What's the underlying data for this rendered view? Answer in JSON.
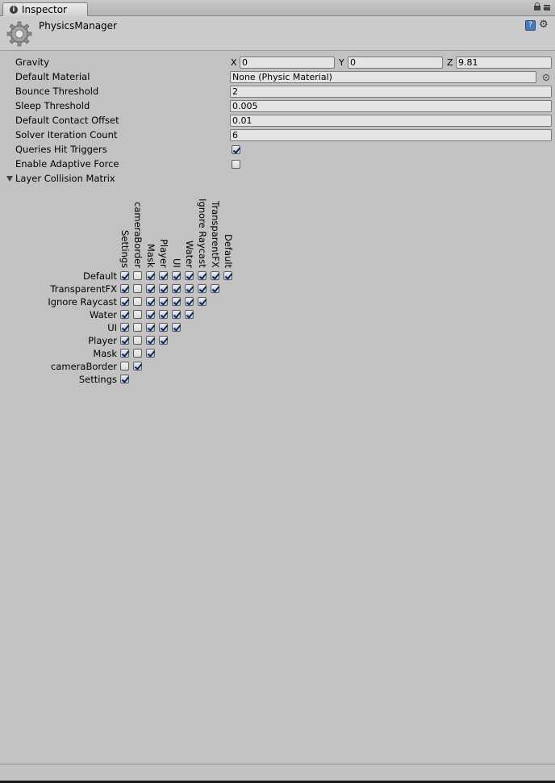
{
  "window": {
    "tab_label": "Inspector"
  },
  "header": {
    "title": "PhysicsManager"
  },
  "properties": {
    "gravity": {
      "label": "Gravity",
      "x_label": "X",
      "x": "0",
      "y_label": "Y",
      "y": "0",
      "z_label": "Z",
      "z": "9.81"
    },
    "default_material": {
      "label": "Default Material",
      "value": "None (Physic Material)"
    },
    "bounce_threshold": {
      "label": "Bounce Threshold",
      "value": "2"
    },
    "sleep_threshold": {
      "label": "Sleep Threshold",
      "value": "0.005"
    },
    "default_contact_offset": {
      "label": "Default Contact Offset",
      "value": "0.01"
    },
    "solver_iteration_count": {
      "label": "Solver Iteration Count",
      "value": "6"
    },
    "queries_hit_triggers": {
      "label": "Queries Hit Triggers",
      "checked": true
    },
    "enable_adaptive_force": {
      "label": "Enable Adaptive Force",
      "checked": false
    }
  },
  "matrix": {
    "label": "Layer Collision Matrix",
    "expanded": true,
    "rows": [
      "Default",
      "TransparentFX",
      "Ignore Raycast",
      "Water",
      "UI",
      "Player",
      "Mask",
      "cameraBorder",
      "Settings"
    ],
    "columns": [
      "Settings",
      "cameraBorder",
      "Mask",
      "Player",
      "UI",
      "Water",
      "Ignore Raycast",
      "TransparentFX",
      "Default"
    ],
    "checks": [
      [
        1,
        0,
        1,
        1,
        1,
        1,
        1,
        1,
        1
      ],
      [
        1,
        0,
        1,
        1,
        1,
        1,
        1,
        1
      ],
      [
        1,
        0,
        1,
        1,
        1,
        1,
        1
      ],
      [
        1,
        0,
        1,
        1,
        1,
        1
      ],
      [
        1,
        0,
        1,
        1,
        1
      ],
      [
        1,
        0,
        1,
        1
      ],
      [
        1,
        0,
        1
      ],
      [
        0,
        1
      ],
      [
        1
      ]
    ]
  }
}
